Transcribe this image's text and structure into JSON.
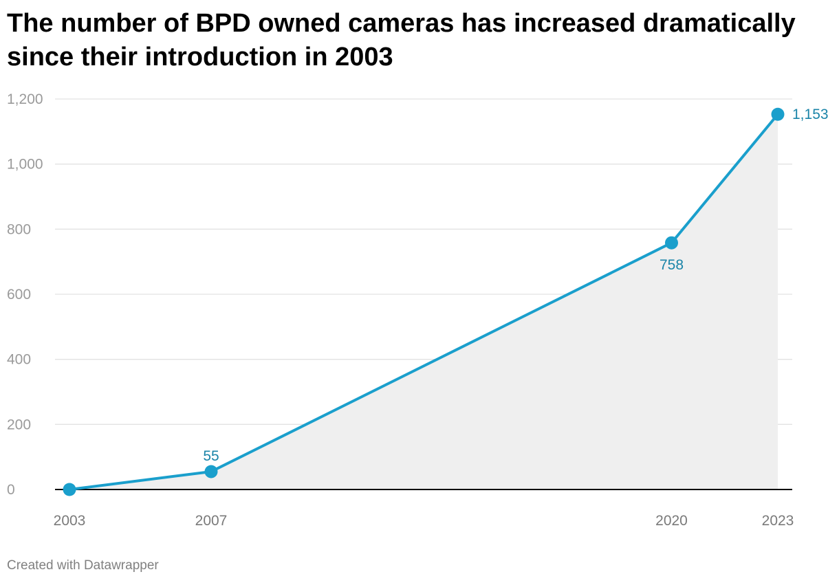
{
  "title": "The number of BPD owned cameras has increased dramatically since their introduction in 2003",
  "footer": "Created with Datawrapper",
  "colors": {
    "line": "#1a9fcc",
    "label": "#1a84a8",
    "area": "#efefef",
    "grid": "#e2e2e2",
    "baseline": "#000000"
  },
  "chart_data": {
    "type": "area",
    "title": "The number of BPD owned cameras has increased dramatically since their introduction in 2003",
    "xlabel": "",
    "ylabel": "",
    "x": [
      2003,
      2007,
      2020,
      2023
    ],
    "x_tick_labels": [
      "2003",
      "2007",
      "2020",
      "2023"
    ],
    "series": [
      {
        "name": "BPD owned cameras",
        "values": [
          0,
          55,
          758,
          1153
        ]
      }
    ],
    "data_labels": [
      {
        "index": 1,
        "text": "55",
        "position": "above"
      },
      {
        "index": 2,
        "text": "758",
        "position": "below"
      },
      {
        "index": 3,
        "text": "1,153",
        "position": "right"
      }
    ],
    "y_ticks": [
      0,
      200,
      400,
      600,
      800,
      1000,
      1200
    ],
    "y_tick_labels": [
      "0",
      "200",
      "400",
      "600",
      "800",
      "1,000",
      "1,200"
    ],
    "xlim": [
      2003,
      2023
    ],
    "ylim": [
      0,
      1200
    ],
    "grid": true,
    "legend": "none"
  }
}
